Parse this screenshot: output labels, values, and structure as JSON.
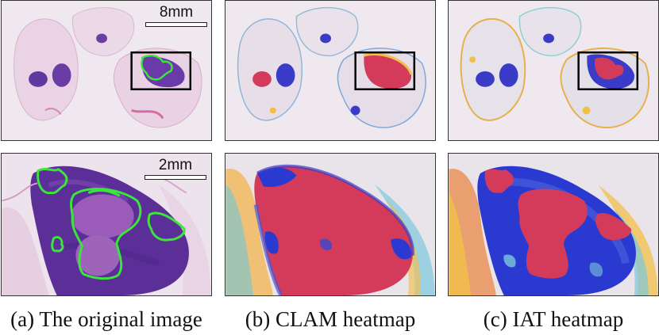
{
  "captions": {
    "a": "(a) The original image",
    "b": "(b) CLAM heatmap",
    "c": "(c) IAT heatmap"
  },
  "scalebars": {
    "top": "8mm",
    "bottom": "2mm"
  },
  "colors": {
    "he_background": "#efe8ee",
    "he_tissue": "#e6c6dc",
    "he_dense": "#5a2d9a",
    "annotation_outline": "#39e639",
    "heat_high": "#d43a5a",
    "heat_low": "#2a3ad0",
    "heat_mid": "#f2c04a"
  }
}
